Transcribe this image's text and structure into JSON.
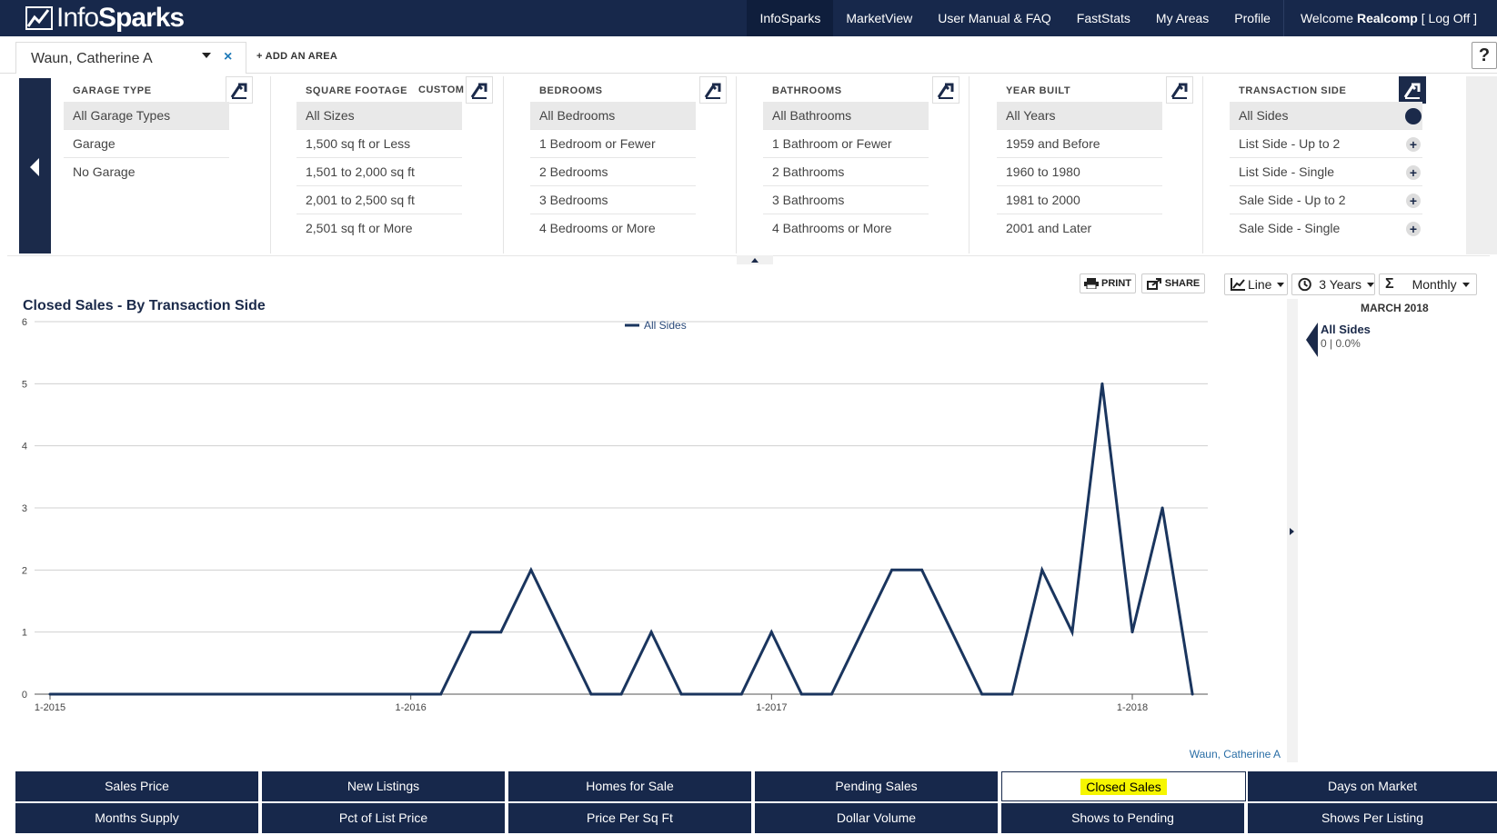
{
  "app": {
    "logo_text_a": "Info",
    "logo_text_b": "Sparks"
  },
  "nav": {
    "items": [
      "InfoSparks",
      "MarketView",
      "User Manual & FAQ",
      "FastStats",
      "My Areas",
      "Profile"
    ],
    "active": "InfoSparks",
    "welcome_prefix": "Welcome ",
    "welcome_user": "Realcomp",
    "logoff": " [ Log Off ]"
  },
  "area": {
    "name": "Waun, Catherine A",
    "close": "×",
    "add_label": "+ ADD AN AREA",
    "help": "?"
  },
  "filters": {
    "garage": {
      "header": "GARAGE TYPE",
      "options": [
        "All Garage Types",
        "Garage",
        "No Garage"
      ]
    },
    "sqft": {
      "header": "SQUARE FOOTAGE",
      "custom": "CUSTOM",
      "options": [
        "All Sizes",
        "1,500 sq ft or Less",
        "1,501 to 2,000 sq ft",
        "2,001 to 2,500 sq ft",
        "2,501 sq ft or More"
      ]
    },
    "bedrooms": {
      "header": "BEDROOMS",
      "options": [
        "All Bedrooms",
        "1 Bedroom or Fewer",
        "2 Bedrooms",
        "3 Bedrooms",
        "4 Bedrooms or More"
      ]
    },
    "bathrooms": {
      "header": "BATHROOMS",
      "options": [
        "All Bathrooms",
        "1 Bathroom or Fewer",
        "2 Bathrooms",
        "3 Bathrooms",
        "4 Bathrooms or More"
      ]
    },
    "year": {
      "header": "YEAR BUILT",
      "options": [
        "All Years",
        "1959 and Before",
        "1960 to 1980",
        "1981 to 2000",
        "2001 and Later"
      ]
    },
    "side": {
      "header": "TRANSACTION SIDE",
      "options": [
        "All Sides",
        "List Side - Up to 2",
        "List Side - Single",
        "Sale Side - Up to 2",
        "Sale Side - Single"
      ]
    }
  },
  "toolbar": {
    "print": "PRINT",
    "share": "SHARE",
    "chart_type": "Line",
    "period": "3 Years",
    "interval": "Monthly"
  },
  "chart_data": {
    "type": "line",
    "title": "Closed Sales - By Transaction Side",
    "xlabel": "",
    "ylabel": "",
    "ylim": [
      0,
      6
    ],
    "y_ticks": [
      "0",
      "1",
      "2",
      "3",
      "4",
      "5",
      "6"
    ],
    "x_tick_labels": [
      "1-2015",
      "1-2016",
      "1-2017",
      "1-2018"
    ],
    "x": [
      "1-2015",
      "2-2015",
      "3-2015",
      "4-2015",
      "5-2015",
      "6-2015",
      "7-2015",
      "8-2015",
      "9-2015",
      "10-2015",
      "11-2015",
      "12-2015",
      "1-2016",
      "2-2016",
      "3-2016",
      "4-2016",
      "5-2016",
      "6-2016",
      "7-2016",
      "8-2016",
      "9-2016",
      "10-2016",
      "11-2016",
      "12-2016",
      "1-2017",
      "2-2017",
      "3-2017",
      "4-2017",
      "5-2017",
      "6-2017",
      "7-2017",
      "8-2017",
      "9-2017",
      "10-2017",
      "11-2017",
      "12-2017",
      "1-2018",
      "2-2018",
      "3-2018"
    ],
    "series": [
      {
        "name": "All Sides",
        "color": "#1a355e",
        "values": [
          0,
          0,
          0,
          0,
          0,
          0,
          0,
          0,
          0,
          0,
          0,
          0,
          0,
          0,
          1,
          1,
          2,
          1,
          0,
          0,
          1,
          0,
          0,
          0,
          1,
          0,
          0,
          1,
          2,
          2,
          1,
          0,
          0,
          2,
          1,
          5,
          1,
          3,
          0
        ]
      }
    ],
    "legend": "top-center",
    "grid": true,
    "source": "Waun, Catherine A"
  },
  "side_panel": {
    "date": "MARCH 2018",
    "series": "All Sides",
    "value": "0 | 0.0%"
  },
  "metrics": {
    "row1": [
      "Sales Price",
      "New Listings",
      "Homes for Sale",
      "Pending Sales",
      "Closed Sales",
      "Days on Market"
    ],
    "row2": [
      "Months Supply",
      "Pct of List Price",
      "Price Per Sq Ft",
      "Dollar Volume",
      "Shows to Pending",
      "Shows Per Listing"
    ],
    "active": "Closed Sales"
  }
}
